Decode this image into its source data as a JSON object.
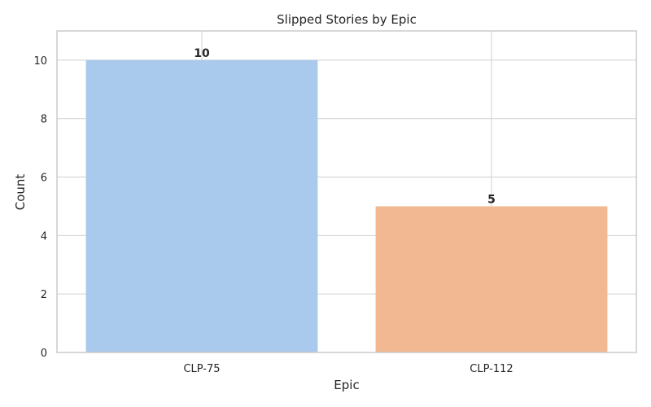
{
  "chart_data": {
    "type": "bar",
    "title": "Slipped Stories by Epic",
    "xlabel": "Epic",
    "ylabel": "Count",
    "categories": [
      "CLP-75",
      "CLP-112"
    ],
    "values": [
      10,
      5
    ],
    "data_labels": [
      "10",
      "5"
    ],
    "ylim": [
      0,
      11
    ],
    "yticks": [
      0,
      2,
      4,
      6,
      8,
      10
    ],
    "ytick_labels": [
      "0",
      "2",
      "4",
      "6",
      "8",
      "10"
    ],
    "colors": [
      "#a9c9ed",
      "#f1b891"
    ],
    "grid": "horizontal",
    "legend": "none"
  }
}
